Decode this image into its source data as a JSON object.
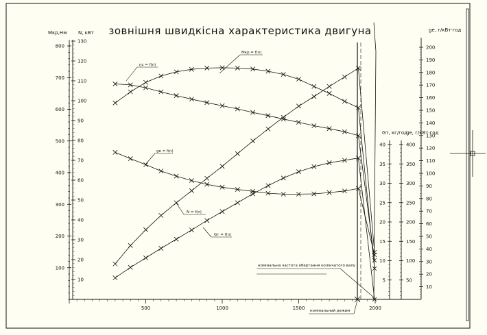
{
  "title": "зовнішня швидкісна характеристика двигуна",
  "axes": {
    "left_torque": {
      "label": "Мкр,Нм",
      "ticks": [
        100,
        200,
        300,
        400,
        500,
        600,
        700,
        800
      ]
    },
    "left_power": {
      "label": "N, кВт",
      "ticks": [
        10,
        20,
        30,
        40,
        50,
        60,
        70,
        80,
        90,
        100,
        110,
        120,
        130
      ]
    },
    "right_ge": {
      "label": "ge, г/кВт·год",
      "ticks": [
        10,
        20,
        30,
        40,
        50,
        60,
        70,
        80,
        90,
        100,
        110,
        120,
        130,
        140,
        150,
        160,
        170,
        180,
        190,
        200
      ]
    },
    "right_Gt": {
      "label": "Gт, кг/год",
      "ticks": [
        5,
        10,
        15,
        20,
        25,
        30,
        35,
        40
      ]
    },
    "right_ge2": {
      "label": "ge, г/кВт·год",
      "ticks": [
        50,
        100,
        150,
        200,
        250,
        300,
        350,
        400
      ]
    },
    "x": {
      "ticks": [
        500,
        1000,
        1500,
        2000
      ]
    }
  },
  "chart_data": {
    "type": "line",
    "title": "зовнішня швидкісна характеристика двигуна",
    "x": [
      300,
      400,
      500,
      600,
      700,
      800,
      900,
      1000,
      1100,
      1200,
      1300,
      1400,
      1500,
      1600,
      1700,
      1800,
      1890
    ],
    "series": [
      {
        "name": "Мкр = f(n)",
        "axis": "left_torque",
        "values": [
          620,
          655,
          685,
          705,
          718,
          726,
          730,
          731,
          730,
          727,
          720,
          710,
          695,
          672,
          650,
          625,
          605
        ]
      },
      {
        "name": "ηс = f(n)",
        "axis": "left_torque",
        "values": [
          680,
          677,
          668,
          655,
          643,
          632,
          621,
          611,
          601,
          590,
          580,
          569,
          559,
          548,
          539,
          529,
          517
        ]
      },
      {
        "name": "ge = f(n)",
        "axis": "left_torque",
        "values": [
          464,
          444,
          425,
          405,
          389,
          375,
          363,
          354,
          347,
          341,
          335,
          332,
          332,
          333,
          337,
          342,
          350
        ]
      },
      {
        "name": "N = f(n)",
        "axis": "left_torque",
        "values": [
          112,
          170,
          220,
          265,
          305,
          343,
          382,
          420,
          460,
          500,
          538,
          575,
          610,
          640,
          672,
          702,
          730
        ]
      },
      {
        "name": "Gт = f(n)",
        "axis": "left_torque",
        "values": [
          68,
          101,
          131,
          161,
          190,
          219,
          249,
          277,
          305,
          333,
          359,
          383,
          403,
          419,
          431,
          439,
          446
        ]
      }
    ],
    "x_ticks": [
      500,
      1000,
      1500,
      2000
    ],
    "annotations": [
      "номінальна частота обертання колінчатого валу",
      "номінальний режим"
    ],
    "grid": false
  }
}
